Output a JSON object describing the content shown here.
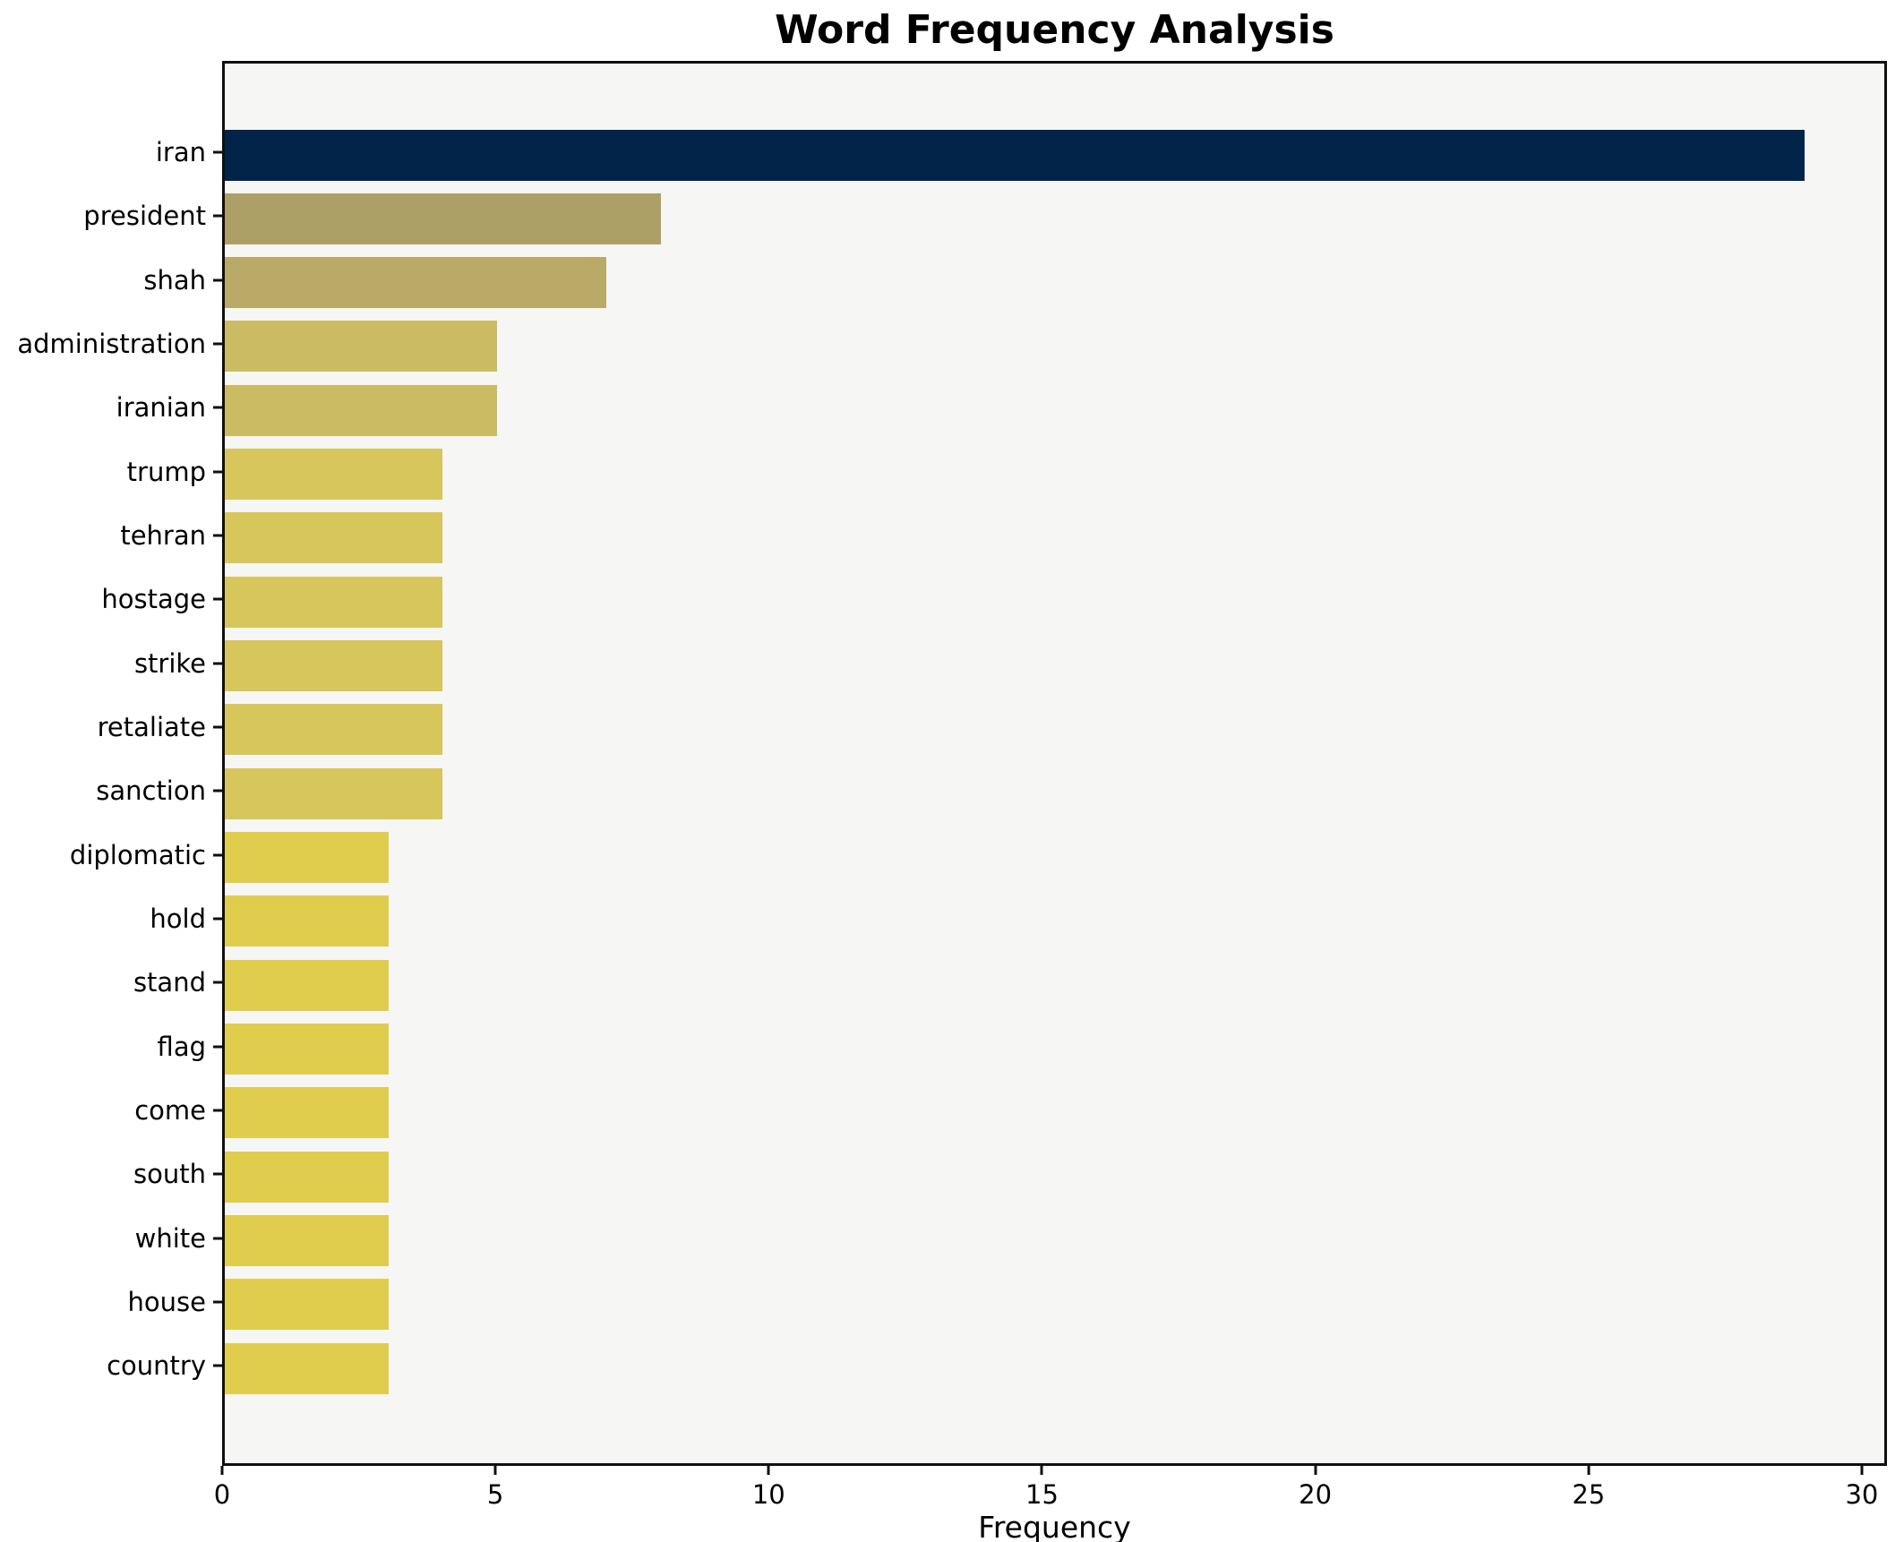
{
  "figure": {
    "title": "Word Frequency Analysis",
    "background_color": "#ffffff",
    "plot_background_color": "#f6f6f4",
    "spine_color": "#0f0f0f"
  },
  "chart_data": {
    "type": "bar",
    "orientation": "horizontal",
    "title": "Word Frequency Analysis",
    "xlabel": "Frequency",
    "ylabel": "",
    "categories": [
      "iran",
      "president",
      "shah",
      "administration",
      "iranian",
      "trump",
      "tehran",
      "hostage",
      "strike",
      "retaliate",
      "sanction",
      "diplomatic",
      "hold",
      "stand",
      "flag",
      "come",
      "south",
      "white",
      "house",
      "country"
    ],
    "values": [
      29,
      8,
      7,
      5,
      5,
      4,
      4,
      4,
      4,
      4,
      4,
      3,
      3,
      3,
      3,
      3,
      3,
      3,
      3,
      3
    ],
    "bar_colors": [
      "#032449",
      "#ada066",
      "#b9ab67",
      "#cbbc63",
      "#cbbc63",
      "#d7c65b",
      "#d7c65b",
      "#d7c65b",
      "#d7c65b",
      "#d7c65b",
      "#d7c65b",
      "#e0cd4e",
      "#e0cd4e",
      "#e0cd4e",
      "#e0cd4e",
      "#e0cd4e",
      "#e0cd4e",
      "#e0cd4e",
      "#e0cd4e",
      "#e0cd4e"
    ],
    "x_ticks": [
      0,
      5,
      10,
      15,
      20,
      25,
      30
    ],
    "xlim": [
      0,
      30.46
    ],
    "grid": false,
    "legend": null
  }
}
